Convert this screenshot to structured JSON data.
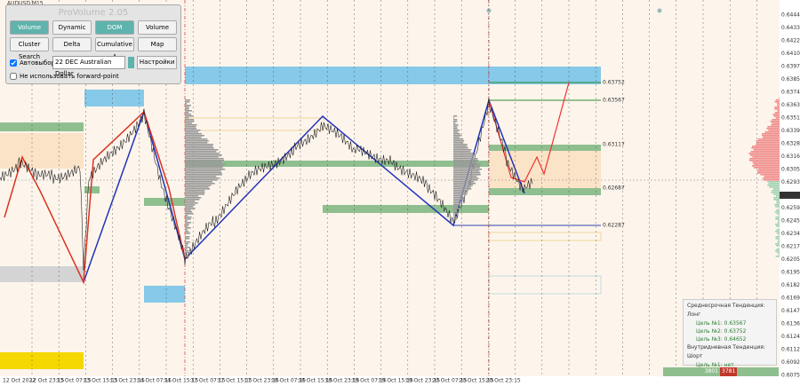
{
  "symbol": "AUDUSD,M15",
  "panel": {
    "title": "ProVolume 2.05",
    "buttons": [
      "Volume Profile",
      "Dynamic POC",
      "DOM",
      "Volume",
      "Cluster Search",
      "Delta",
      "Cumulative Δ",
      "Map"
    ],
    "auto_select": "Автовыбор",
    "instrument": "22 DEC Australian Dollar",
    "settings": "Настройки",
    "forward_point": "Не использовать forward-point"
  },
  "price_axis": [
    "0.64446",
    "0.64333",
    "0.64220",
    "0.64105",
    "0.63979",
    "0.63856",
    "0.63743",
    "0.63630",
    "0.63517",
    "0.63395",
    "0.63282",
    "0.63169",
    "0.63056",
    "0.62933",
    "0.62746",
    "0.62597",
    "0.62459",
    "0.62345",
    "0.62170",
    "0.62057",
    "0.61950",
    "0.61824",
    "0.61690",
    "0.61475",
    "0.61360",
    "0.61240",
    "0.61120",
    "0.60920",
    "0.60750"
  ],
  "current_price": "0.62746",
  "level_labels": [
    "0.63752",
    "0.63567",
    "0.63117",
    "0.62687",
    "0.62287"
  ],
  "date_axis": [
    "12 Oct 2022",
    "12 Oct 23:15",
    "13 Oct 07:15",
    "13 Oct 15:15",
    "13 Oct 23:15",
    "14 Oct 07:15",
    "14 Oct 15:15",
    "17 Oct 07:15",
    "17 Oct 15:15",
    "17 Oct 23:15",
    "18 Oct 07:15",
    "18 Oct 15:15",
    "18 Oct 23:15",
    "19 Oct 07:15",
    "19 Oct 15:15",
    "19 Oct 23:15",
    "20 Oct 07:15",
    "20 Oct 15:15",
    "20 Oct 23:15"
  ],
  "info": {
    "mid_trend": "Среднесрочная Тенденция: Лонг",
    "mid_targets": [
      "Цель №1: 0.63567",
      "Цель №2: 0.63752",
      "Цель №3: 0.64652"
    ],
    "intraday_trend": "Внутридневная Тенденция: Шорт",
    "intraday_targets": [
      "Цель №1: нет",
      "Цель №2: нет"
    ],
    "footer": [
      "3801",
      "3781"
    ]
  }
}
